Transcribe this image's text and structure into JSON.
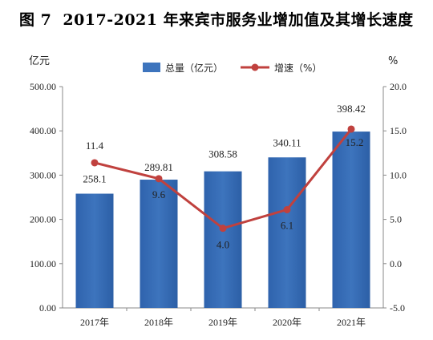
{
  "figure": {
    "label": "图 7",
    "title": "2017-2021 年来宾市服务业增加值及其增长速度"
  },
  "chart_data": {
    "type": "bar",
    "categories": [
      "2017年",
      "2018年",
      "2019年",
      "2020年",
      "2021年"
    ],
    "series": [
      {
        "name": "总量（亿元）",
        "type": "bar",
        "axis": "left",
        "values": [
          258.1,
          289.81,
          308.58,
          340.11,
          398.42
        ],
        "labels": [
          "258.1",
          "289.81",
          "308.58",
          "340.11",
          "398.42"
        ],
        "color": "#3d74bd"
      },
      {
        "name": "增速（%）",
        "type": "line",
        "axis": "right",
        "values": [
          11.4,
          9.6,
          4.0,
          6.1,
          15.2
        ],
        "labels": [
          "11.4",
          "9.6",
          "4.0",
          "6.1",
          "15.2"
        ],
        "color": "#c0413e"
      }
    ],
    "ylabel": "亿元",
    "y2label": "%",
    "ylim": [
      0,
      500
    ],
    "y2lim": [
      -5,
      20
    ],
    "yticks": [
      "0.00",
      "100.00",
      "200.00",
      "300.00",
      "400.00",
      "500.00"
    ],
    "y2ticks": [
      "-5.0",
      "0.0",
      "5.0",
      "10.0",
      "15.0",
      "20.0"
    ],
    "legend_position": "top-center",
    "grid": false
  }
}
